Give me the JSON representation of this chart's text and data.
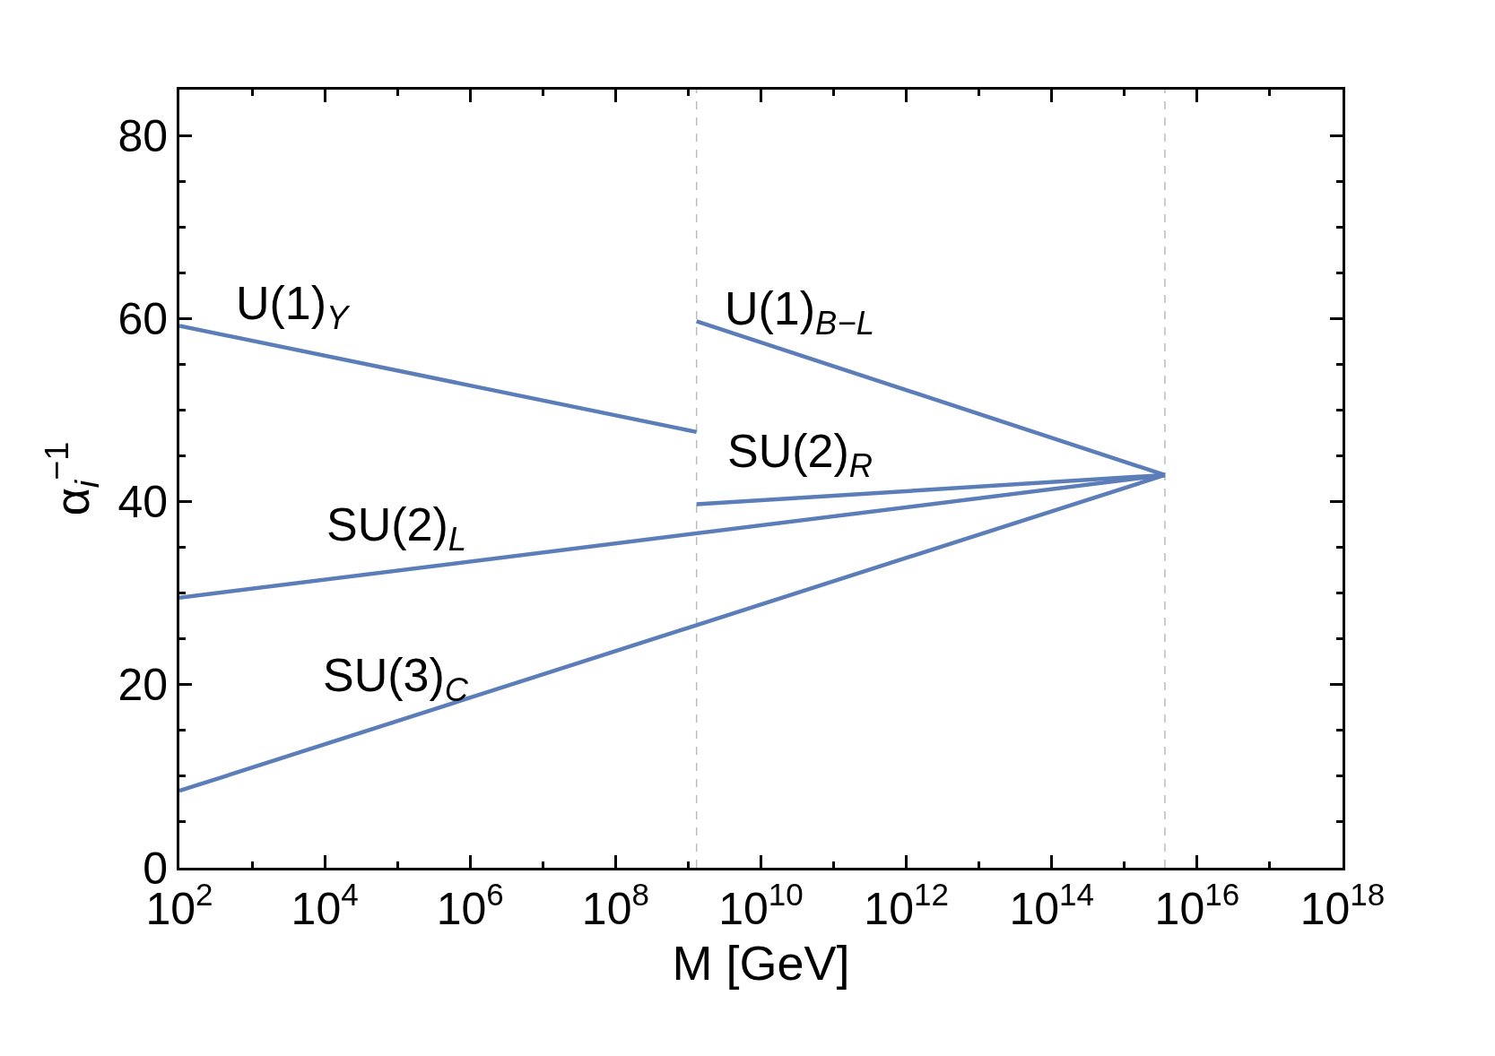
{
  "chart_data": {
    "type": "line",
    "xlabel": "M [GeV]",
    "ylabel": "α$_{i}$$^{−1}$",
    "log": "x",
    "series": [
      {
        "name": "U(1)$_{Y}$",
        "color": "#5b7db8",
        "x": [
          100.0,
          1300000000.0
        ],
        "values": [
          59.2,
          47.6
        ]
      },
      {
        "name": "U(1)$_{B−L}$",
        "color": "#5b7db8",
        "x": [
          1300000000.0,
          3600000000000000.0
        ],
        "values": [
          59.7,
          42.9
        ]
      },
      {
        "name": "SU(2)$_{R}$",
        "color": "#5b7db8",
        "x": [
          1300000000.0,
          3600000000000000.0
        ],
        "values": [
          39.7,
          42.9
        ]
      },
      {
        "name": "SU(2)$_{L}$",
        "color": "#5b7db8",
        "x": [
          100.0,
          3600000000000000.0
        ],
        "values": [
          29.5,
          42.9
        ]
      },
      {
        "name": "SU(3)$_{C}$",
        "color": "#5b7db8",
        "x": [
          100.0,
          3600000000000000.0
        ],
        "values": [
          8.4,
          42.9
        ]
      }
    ],
    "xlim": [
      100.0,
      1e+18
    ],
    "xticks": [
      {
        "value": 100.0,
        "label": "10$^{2}$"
      },
      {
        "value": 10000.0,
        "label": "10$^{4}$"
      },
      {
        "value": 1000000.0,
        "label": "10$^{6}$"
      },
      {
        "value": 100000000.0,
        "label": "10$^{8}$"
      },
      {
        "value": 10000000000.0,
        "label": "10$^{10}$"
      },
      {
        "value": 1000000000000.0,
        "label": "10$^{12}$"
      },
      {
        "value": 100000000000000.0,
        "label": "10$^{14}$"
      },
      {
        "value": 1e+16,
        "label": "10$^{16}$"
      },
      {
        "value": 1e+18,
        "label": "10$^{18}$"
      }
    ],
    "ylim": [
      0,
      85
    ],
    "yticks": [
      0,
      20,
      40,
      60,
      80
    ],
    "ref_lines": [
      {
        "axis": "x",
        "value": 1300000000.0,
        "color": "#bbbbbb",
        "line_style": "dashed"
      },
      {
        "axis": "x",
        "value": 3600000000000000.0,
        "color": "#bbbbbb",
        "line_style": "dashed"
      }
    ],
    "grid": false,
    "legend": false,
    "marker": "none",
    "line_style": "solid"
  }
}
